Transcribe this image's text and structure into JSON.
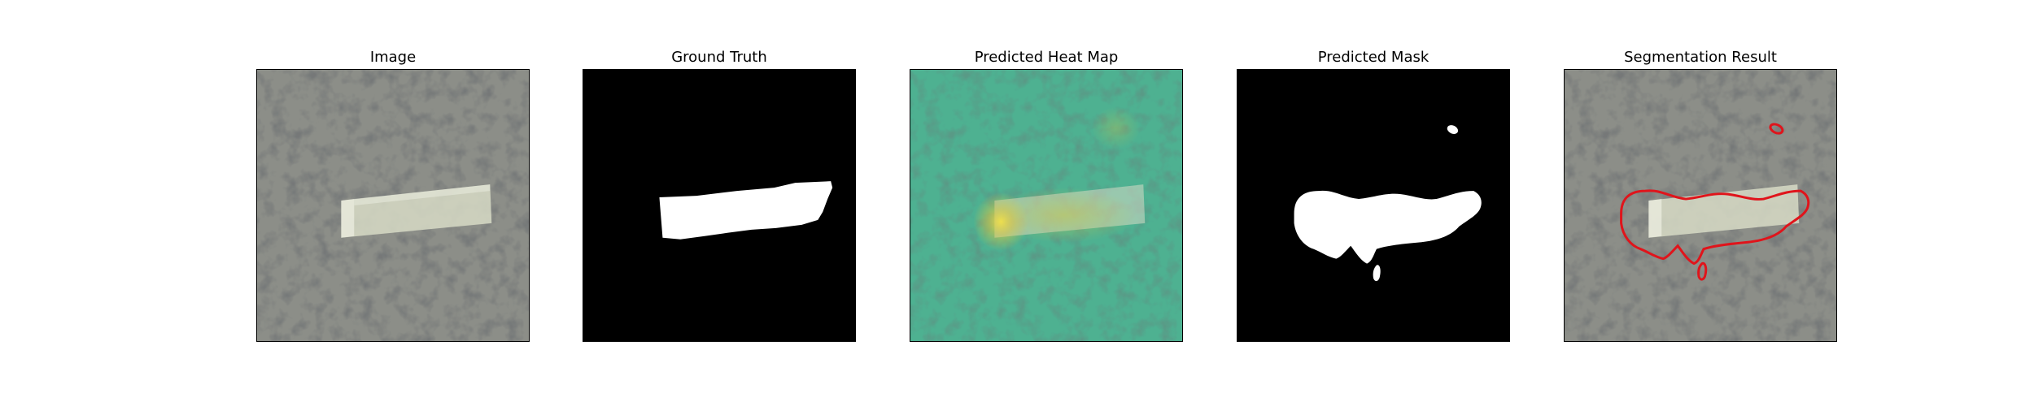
{
  "panels": [
    {
      "title": "Image"
    },
    {
      "title": "Ground Truth"
    },
    {
      "title": "Predicted Heat Map"
    },
    {
      "title": "Predicted Mask"
    },
    {
      "title": "Segmentation Result"
    }
  ],
  "colors": {
    "background": "#ffffff",
    "surface_base": "#8a8c86",
    "surface_dark_spots": "#2f3130",
    "defect_tape": "#d9dcc8",
    "heatmap_base": "#3ea98a",
    "heatmap_hot": "#f3d84a",
    "mask_foreground": "#ffffff",
    "mask_background": "#000000",
    "contour": "#e0141b"
  },
  "icons": {
    "panel1": "textured-surface-image",
    "panel2": "ground-truth-mask",
    "panel3": "heat-map-overlay",
    "panel4": "binary-predicted-mask",
    "panel5": "segmentation-contour-overlay"
  }
}
